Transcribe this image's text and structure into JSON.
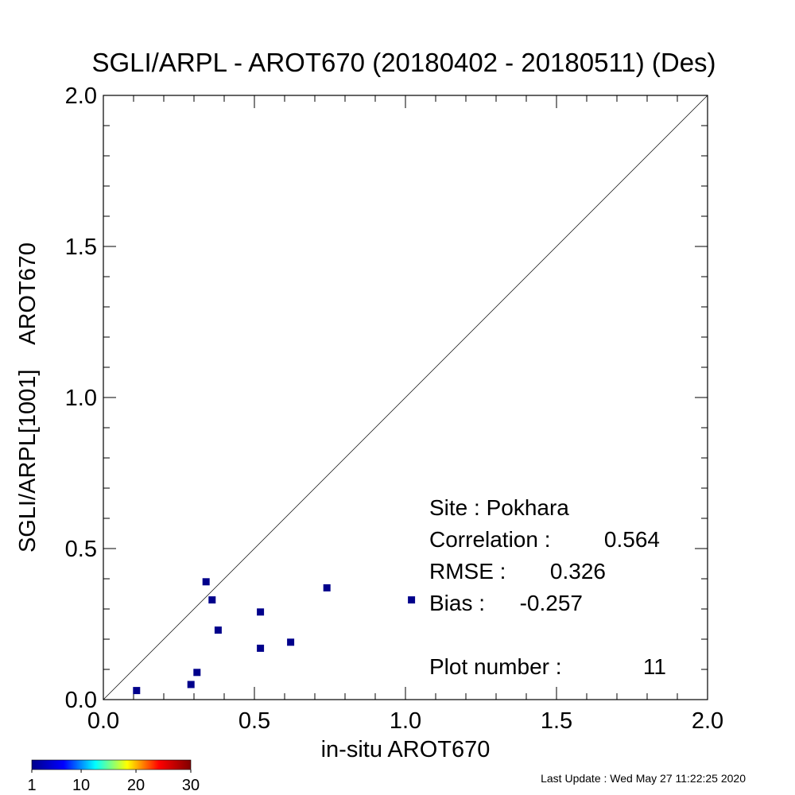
{
  "chart_data": {
    "type": "scatter",
    "title": "SGLI/ARPL - AROT670 (20180402 - 20180511) (Des)",
    "xlabel": "in-situ AROT670",
    "ylabel": "SGLI/ARPL[1001]    AROT670",
    "xlim": [
      0.0,
      2.0
    ],
    "ylim": [
      0.0,
      2.0
    ],
    "xticks": [
      "0.0",
      "0.5",
      "1.0",
      "1.5",
      "2.0"
    ],
    "yticks": [
      "0.0",
      "0.5",
      "1.0",
      "1.5",
      "2.0"
    ],
    "grid": false,
    "one_to_one_line": true,
    "marker_color": "#00008b",
    "points": [
      {
        "x": 0.11,
        "y": 0.03
      },
      {
        "x": 0.29,
        "y": 0.05
      },
      {
        "x": 0.31,
        "y": 0.09
      },
      {
        "x": 0.34,
        "y": 0.39
      },
      {
        "x": 0.36,
        "y": 0.33
      },
      {
        "x": 0.38,
        "y": 0.23
      },
      {
        "x": 0.52,
        "y": 0.29
      },
      {
        "x": 0.52,
        "y": 0.17
      },
      {
        "x": 0.62,
        "y": 0.19
      },
      {
        "x": 0.74,
        "y": 0.37
      },
      {
        "x": 1.02,
        "y": 0.33
      }
    ],
    "stats": [
      {
        "label": "Site : Pokhara",
        "value": ""
      },
      {
        "label": "Correlation :",
        "value": "0.564"
      },
      {
        "label": "RMSE :",
        "value": "0.326"
      },
      {
        "label": "Bias :",
        "value": "-0.257"
      },
      {
        "label": "Plot number :",
        "value": "11"
      }
    ],
    "colorbar": {
      "ticks": [
        "1",
        "10",
        "20",
        "30"
      ],
      "tick_values": [
        1,
        10,
        20,
        30
      ],
      "range": [
        1,
        30
      ],
      "colors": [
        "#00008b",
        "#0000ff",
        "#00ffff",
        "#ffff00",
        "#ff0000",
        "#800000"
      ]
    },
    "footer": "Last Update : Wed May 27 11:22:25 2020"
  }
}
